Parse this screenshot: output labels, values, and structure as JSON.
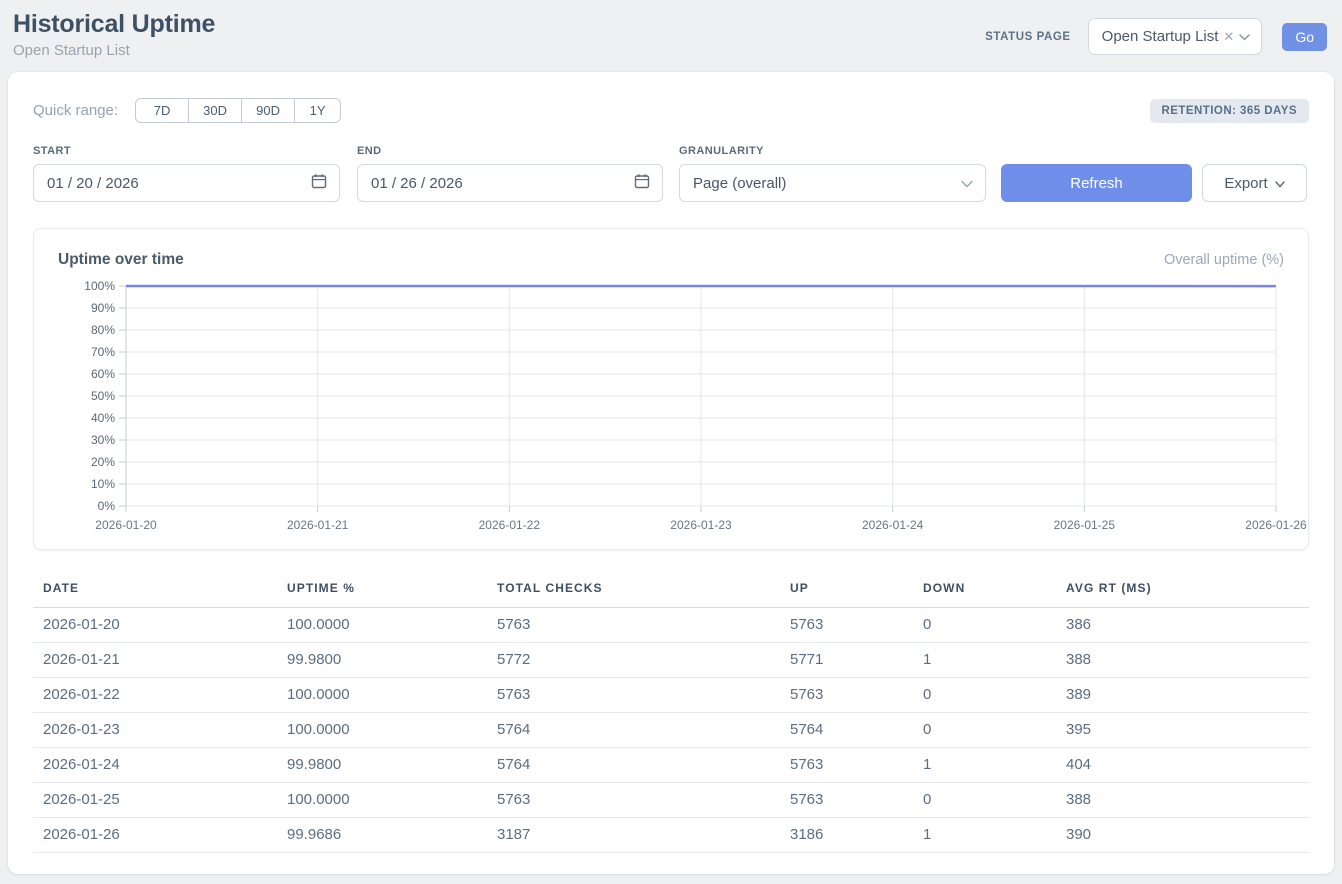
{
  "header": {
    "title": "Historical Uptime",
    "subtitle": "Open Startup List",
    "status_page_label": "STATUS PAGE",
    "status_page_value": "Open Startup List",
    "go_label": "Go"
  },
  "controls": {
    "quick_range_label": "Quick range:",
    "quick_range_options": [
      "7D",
      "30D",
      "90D",
      "1Y"
    ],
    "retention_badge": "RETENTION: 365 DAYS",
    "start_label": "START",
    "start_value": "01 / 20 / 2026",
    "end_label": "END",
    "end_value": "01 / 26 / 2026",
    "granularity_label": "GRANULARITY",
    "granularity_value": "Page (overall)",
    "refresh_label": "Refresh",
    "export_label": "Export"
  },
  "chart": {
    "title": "Uptime over time",
    "legend": "Overall uptime (%)"
  },
  "chart_data": {
    "type": "line",
    "title": "Uptime over time",
    "x": [
      "2026-01-20",
      "2026-01-21",
      "2026-01-22",
      "2026-01-23",
      "2026-01-24",
      "2026-01-25",
      "2026-01-26"
    ],
    "series": [
      {
        "name": "Overall uptime (%)",
        "values": [
          100.0,
          99.98,
          100.0,
          100.0,
          99.98,
          100.0,
          99.9686
        ]
      }
    ],
    "xlabel": "",
    "ylabel": "",
    "ylim": [
      0,
      100
    ],
    "yticks": [
      0,
      10,
      20,
      30,
      40,
      50,
      60,
      70,
      80,
      90,
      100
    ],
    "ytick_suffix": "%",
    "grid": true,
    "legend_position": "top-right",
    "line_color": "#7c84ec"
  },
  "table": {
    "columns": [
      "DATE",
      "UPTIME %",
      "TOTAL CHECKS",
      "UP",
      "DOWN",
      "AVG RT (MS)"
    ],
    "rows": [
      [
        "2026-01-20",
        "100.0000",
        "5763",
        "5763",
        "0",
        "386"
      ],
      [
        "2026-01-21",
        "99.9800",
        "5772",
        "5771",
        "1",
        "388"
      ],
      [
        "2026-01-22",
        "100.0000",
        "5763",
        "5763",
        "0",
        "389"
      ],
      [
        "2026-01-23",
        "100.0000",
        "5764",
        "5764",
        "0",
        "395"
      ],
      [
        "2026-01-24",
        "99.9800",
        "5764",
        "5763",
        "1",
        "404"
      ],
      [
        "2026-01-25",
        "100.0000",
        "5763",
        "5763",
        "0",
        "388"
      ],
      [
        "2026-01-26",
        "99.9686",
        "3187",
        "3186",
        "1",
        "390"
      ]
    ]
  },
  "colors": {
    "accent_blue": "#6e8eea",
    "go_blue": "#7191e5",
    "line": "#7c84ec",
    "badge_bg": "#e3e9ef",
    "grid": "#e4e7eb",
    "axis": "#c6ccd3"
  }
}
